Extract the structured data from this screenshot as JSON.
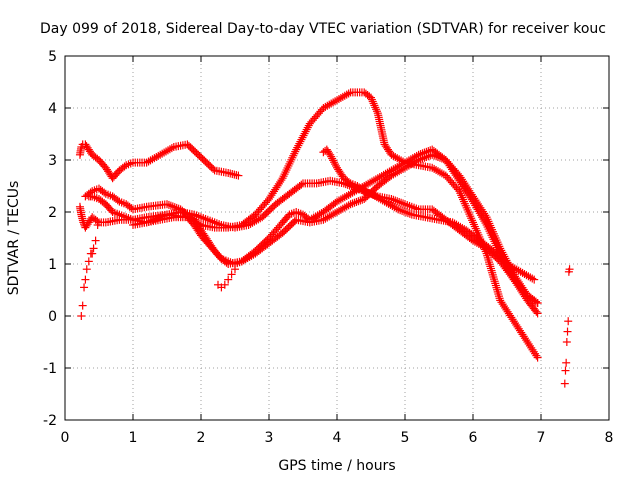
{
  "chart_data": {
    "type": "scatter",
    "title": "Day 099 of 2018, Sidereal Day-to-day VTEC variation (SDTVAR) for receiver kouc",
    "xlabel": "GPS time / hours",
    "ylabel": "SDTVAR / TECUs",
    "xlim": [
      0,
      8
    ],
    "ylim": [
      -2,
      5
    ],
    "xticks": [
      "0",
      "1",
      "2",
      "3",
      "4",
      "5",
      "6",
      "7",
      "8"
    ],
    "yticks": [
      "-2",
      "-1",
      "0",
      "1",
      "2",
      "3",
      "4",
      "5"
    ],
    "grid": true,
    "marker": "+",
    "color": "#ff0000",
    "series": [
      {
        "x": [
          0.22,
          0.24,
          0.26,
          0.3,
          0.35,
          0.4,
          0.5,
          0.6,
          0.7,
          0.8,
          0.9,
          1.0,
          1.2,
          1.4,
          1.6,
          1.8,
          2.0,
          2.2,
          2.4,
          2.55
        ],
        "y": [
          3.1,
          3.25,
          3.3,
          3.3,
          3.2,
          3.1,
          3.0,
          2.85,
          2.65,
          2.8,
          2.9,
          2.95,
          2.95,
          3.1,
          3.25,
          3.3,
          3.05,
          2.8,
          2.75,
          2.7
        ]
      },
      {
        "x": [
          0.22,
          0.24,
          0.27,
          0.3,
          0.35,
          0.4,
          0.45,
          0.5,
          0.6,
          0.8,
          1.0,
          1.2,
          1.5,
          1.8,
          2.0,
          2.2,
          2.4,
          2.6,
          2.8,
          3.0,
          3.2,
          3.4,
          3.6,
          3.8,
          4.0,
          4.2,
          4.3,
          4.4,
          4.5,
          4.6,
          4.7,
          4.8,
          5.0,
          5.2,
          5.4,
          5.6,
          5.8,
          6.0,
          6.2,
          6.4,
          6.6,
          6.8,
          6.95
        ],
        "y": [
          2.1,
          1.95,
          1.8,
          1.7,
          1.8,
          1.9,
          1.85,
          1.8,
          1.8,
          1.85,
          1.85,
          1.9,
          1.95,
          1.9,
          1.75,
          1.7,
          1.7,
          1.75,
          1.95,
          2.25,
          2.65,
          3.2,
          3.7,
          4.0,
          4.15,
          4.3,
          4.3,
          4.3,
          4.2,
          3.9,
          3.3,
          3.1,
          2.95,
          2.9,
          2.85,
          2.7,
          2.4,
          1.8,
          1.2,
          0.3,
          -0.1,
          -0.5,
          -0.8
        ]
      },
      {
        "x": [
          0.3,
          0.4,
          0.5,
          0.6,
          0.7,
          0.8,
          0.9,
          1.0,
          1.2,
          1.5,
          1.7,
          1.9,
          2.0,
          2.1,
          2.2,
          2.3,
          2.4,
          2.5,
          2.6,
          2.8,
          3.0,
          3.2,
          3.4,
          3.6,
          3.8,
          4.0,
          4.2,
          4.4,
          4.6,
          4.8,
          5.0,
          5.2,
          5.4,
          5.6,
          5.8,
          6.0,
          6.2,
          6.4,
          6.6,
          6.8,
          6.95
        ],
        "y": [
          2.3,
          2.4,
          2.45,
          2.35,
          2.3,
          2.2,
          2.15,
          2.05,
          2.1,
          2.15,
          2.05,
          1.85,
          1.65,
          1.45,
          1.25,
          1.1,
          1.05,
          1.0,
          1.05,
          1.2,
          1.4,
          1.6,
          1.85,
          1.8,
          1.85,
          2.0,
          2.15,
          2.25,
          2.5,
          2.7,
          2.85,
          3.0,
          3.1,
          3.0,
          2.7,
          2.3,
          1.9,
          1.3,
          0.8,
          0.4,
          0.25
        ]
      },
      {
        "x": [
          0.35,
          0.4,
          0.5,
          0.6,
          0.7,
          0.8,
          0.9,
          1.0,
          1.2,
          1.5,
          1.7,
          1.9,
          2.0,
          2.1,
          2.2,
          2.3,
          2.5,
          2.7,
          2.9,
          3.1,
          3.3,
          3.5,
          3.7,
          3.9,
          4.1,
          4.3,
          4.5,
          4.7,
          4.9,
          5.1,
          5.3,
          5.5,
          5.7,
          5.9,
          6.1,
          6.3,
          6.5,
          6.7,
          6.9
        ],
        "y": [
          2.3,
          2.3,
          2.25,
          2.15,
          2.0,
          1.95,
          1.9,
          1.85,
          1.8,
          1.95,
          2.0,
          1.95,
          1.9,
          1.85,
          1.8,
          1.75,
          1.7,
          1.75,
          1.9,
          2.15,
          2.35,
          2.55,
          2.55,
          2.6,
          2.55,
          2.45,
          2.35,
          2.2,
          2.05,
          1.95,
          1.9,
          1.85,
          1.8,
          1.65,
          1.45,
          1.25,
          1.0,
          0.85,
          0.7
        ]
      },
      {
        "x": [
          1.0,
          1.2,
          1.4,
          1.6,
          1.8,
          1.9,
          2.0,
          2.1,
          2.2,
          2.3,
          2.4,
          2.6,
          2.8,
          3.0,
          3.2,
          3.3,
          3.4,
          3.5,
          3.6,
          3.8,
          4.0,
          4.2,
          4.4,
          4.6,
          4.8,
          5.0,
          5.2,
          5.4,
          5.6,
          5.8,
          6.0,
          6.2,
          6.4,
          6.6,
          6.8,
          6.95
        ],
        "y": [
          1.75,
          1.8,
          1.85,
          1.9,
          1.9,
          1.75,
          1.55,
          1.4,
          1.25,
          1.1,
          1.0,
          1.05,
          1.25,
          1.5,
          1.8,
          1.95,
          2.0,
          1.95,
          1.85,
          2.0,
          2.2,
          2.35,
          2.5,
          2.65,
          2.8,
          2.95,
          3.1,
          3.2,
          3.0,
          2.6,
          2.2,
          1.75,
          1.2,
          0.7,
          0.3,
          0.05
        ]
      },
      {
        "x": [
          3.8,
          3.85,
          3.9,
          4.0,
          4.1,
          4.2,
          4.3,
          4.4,
          4.6,
          4.8,
          5.0,
          5.1,
          5.2,
          5.3,
          5.4,
          5.5,
          5.6,
          5.7,
          5.8,
          6.0,
          6.2,
          6.4,
          6.6,
          6.8,
          6.95
        ],
        "y": [
          3.15,
          3.2,
          3.1,
          2.85,
          2.65,
          2.55,
          2.5,
          2.4,
          2.3,
          2.25,
          2.15,
          2.1,
          2.05,
          2.05,
          2.05,
          1.95,
          1.85,
          1.75,
          1.65,
          1.45,
          1.3,
          1.05,
          0.7,
          0.4,
          0.25
        ]
      },
      {
        "x": [
          0.24,
          0.26,
          0.28,
          0.3,
          0.32,
          0.35,
          0.38,
          0.4,
          0.42,
          0.45,
          0.48
        ],
        "y": [
          0.0,
          0.2,
          0.55,
          0.7,
          0.9,
          1.05,
          1.2,
          1.2,
          1.3,
          1.45,
          1.75
        ]
      },
      {
        "x": [
          2.25,
          2.3,
          2.35,
          2.4,
          2.45,
          2.5
        ],
        "y": [
          0.6,
          0.55,
          0.6,
          0.7,
          0.8,
          0.9
        ]
      },
      {
        "x": [
          7.35,
          7.36,
          7.37,
          7.38,
          7.39,
          7.4,
          7.41,
          7.42
        ],
        "y": [
          -1.3,
          -1.05,
          -0.9,
          -0.5,
          -0.3,
          -0.1,
          0.85,
          0.9
        ]
      }
    ]
  }
}
